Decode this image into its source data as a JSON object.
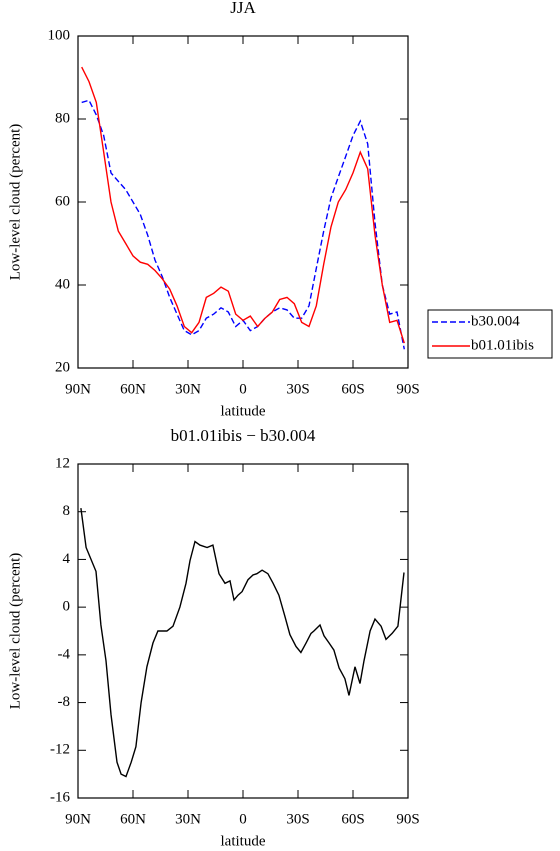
{
  "chart_data": [
    {
      "type": "line",
      "title": "JJA",
      "xlabel": "latitude",
      "ylabel": "Low-level cloud (percent)",
      "x": [
        88,
        84,
        80,
        76,
        72,
        68,
        64,
        60,
        56,
        52,
        48,
        44,
        40,
        36,
        32,
        28,
        24,
        20,
        16,
        12,
        8,
        4,
        0,
        -4,
        -8,
        -12,
        -16,
        -20,
        -24,
        -28,
        -32,
        -36,
        -40,
        -44,
        -48,
        -52,
        -56,
        -60,
        -64,
        -68,
        -72,
        -76,
        -80,
        -84,
        -88
      ],
      "series": [
        {
          "name": "b30.004",
          "color": "#0000ff",
          "dashed": true,
          "values": [
            84,
            84.5,
            81,
            76,
            67,
            65,
            63,
            60,
            57,
            52,
            46,
            42,
            37,
            33,
            29,
            28,
            29,
            32,
            33,
            34.5,
            33.5,
            30,
            31.5,
            29,
            30,
            32,
            33.5,
            34.5,
            34,
            32,
            32,
            35,
            44,
            53,
            61,
            66,
            71,
            76,
            79.5,
            74,
            55,
            40,
            33,
            33.5,
            24.5
          ]
        },
        {
          "name": "b01.01ibis",
          "color": "#ff0000",
          "dashed": false,
          "values": [
            92.5,
            89,
            84,
            72,
            60,
            53,
            50,
            47,
            45.5,
            45,
            43.5,
            41.5,
            39,
            35,
            30,
            28.5,
            31,
            37,
            38,
            39.5,
            38.5,
            33,
            31.5,
            32.5,
            30,
            32,
            33.5,
            36.5,
            37,
            35.5,
            31,
            30,
            35,
            45,
            54,
            60,
            63,
            67,
            72,
            68,
            52,
            40,
            31,
            31.5,
            26
          ]
        }
      ],
      "xlim": [
        90,
        -90
      ],
      "xticks": [
        {
          "value": 90,
          "label": "90N"
        },
        {
          "value": 60,
          "label": "60N"
        },
        {
          "value": 30,
          "label": "30N"
        },
        0,
        {
          "value": -30,
          "label": "30S"
        },
        {
          "value": -60,
          "label": "60S"
        },
        {
          "value": -90,
          "label": "90S"
        }
      ],
      "ylim": [
        20,
        100
      ],
      "yticks": [
        20,
        40,
        60,
        80,
        100
      ],
      "legend": "right"
    },
    {
      "type": "line",
      "title": "b01.01ibis − b30.004",
      "xlabel": "latitude",
      "ylabel": "Low-level cloud (percent)",
      "x": [
        88.4,
        85.6,
        80.2,
        77.5,
        74.7,
        72,
        68.7,
        66.5,
        63.8,
        61,
        58.4,
        55.6,
        52.4,
        49.1,
        46.4,
        41.5,
        38.2,
        34.4,
        31.1,
        28.9,
        26.2,
        23.5,
        19.6,
        16.4,
        13.1,
        9.8,
        7.1,
        4.9,
        2.7,
        0.5,
        -2.7,
        -5.5,
        -7.6,
        -10.4,
        -13.6,
        -16.4,
        -19.6,
        -22.9,
        -25.6,
        -28.9,
        -31.6,
        -34.4,
        -37.1,
        -38.7,
        -42,
        -44.2,
        -46.9,
        -49.6,
        -52.4,
        -55.6,
        -57.8,
        -61.1,
        -63.8,
        -66,
        -69.3,
        -72,
        -75.3,
        -78,
        -81.3,
        -84.5,
        -87.8
      ],
      "series": [
        {
          "name": "b01.01ibis − b30.004",
          "color": "#000000",
          "dashed": false,
          "values": [
            8.3,
            5,
            3,
            -1.5,
            -4.5,
            -9,
            -13,
            -14,
            -14.2,
            -13,
            -11.7,
            -8,
            -5,
            -3,
            -2,
            -2,
            -1.6,
            0,
            2,
            3.9,
            5.5,
            5.2,
            5,
            5.2,
            2.8,
            2,
            2.2,
            0.6,
            1,
            1.3,
            2.3,
            2.7,
            2.8,
            3.1,
            2.8,
            2,
            1,
            -0.8,
            -2.3,
            -3.3,
            -3.8,
            -3,
            -2.2,
            -2,
            -1.5,
            -2.4,
            -3,
            -3.6,
            -5.1,
            -6,
            -7.4,
            -5,
            -6.4,
            -4.5,
            -2,
            -1,
            -1.6,
            -2.7,
            -2.2,
            -1.6,
            2.9
          ]
        }
      ],
      "xlim": [
        90,
        -90
      ],
      "xticks": [
        {
          "value": 90,
          "label": "90N"
        },
        {
          "value": 60,
          "label": "60N"
        },
        {
          "value": 30,
          "label": "30N"
        },
        0,
        {
          "value": -30,
          "label": "30S"
        },
        {
          "value": -60,
          "label": "60S"
        },
        {
          "value": -90,
          "label": "90S"
        }
      ],
      "ylim": [
        -16,
        12
      ],
      "yticks": [
        -16,
        -12,
        -8,
        -4,
        0,
        4,
        8,
        12
      ]
    }
  ]
}
